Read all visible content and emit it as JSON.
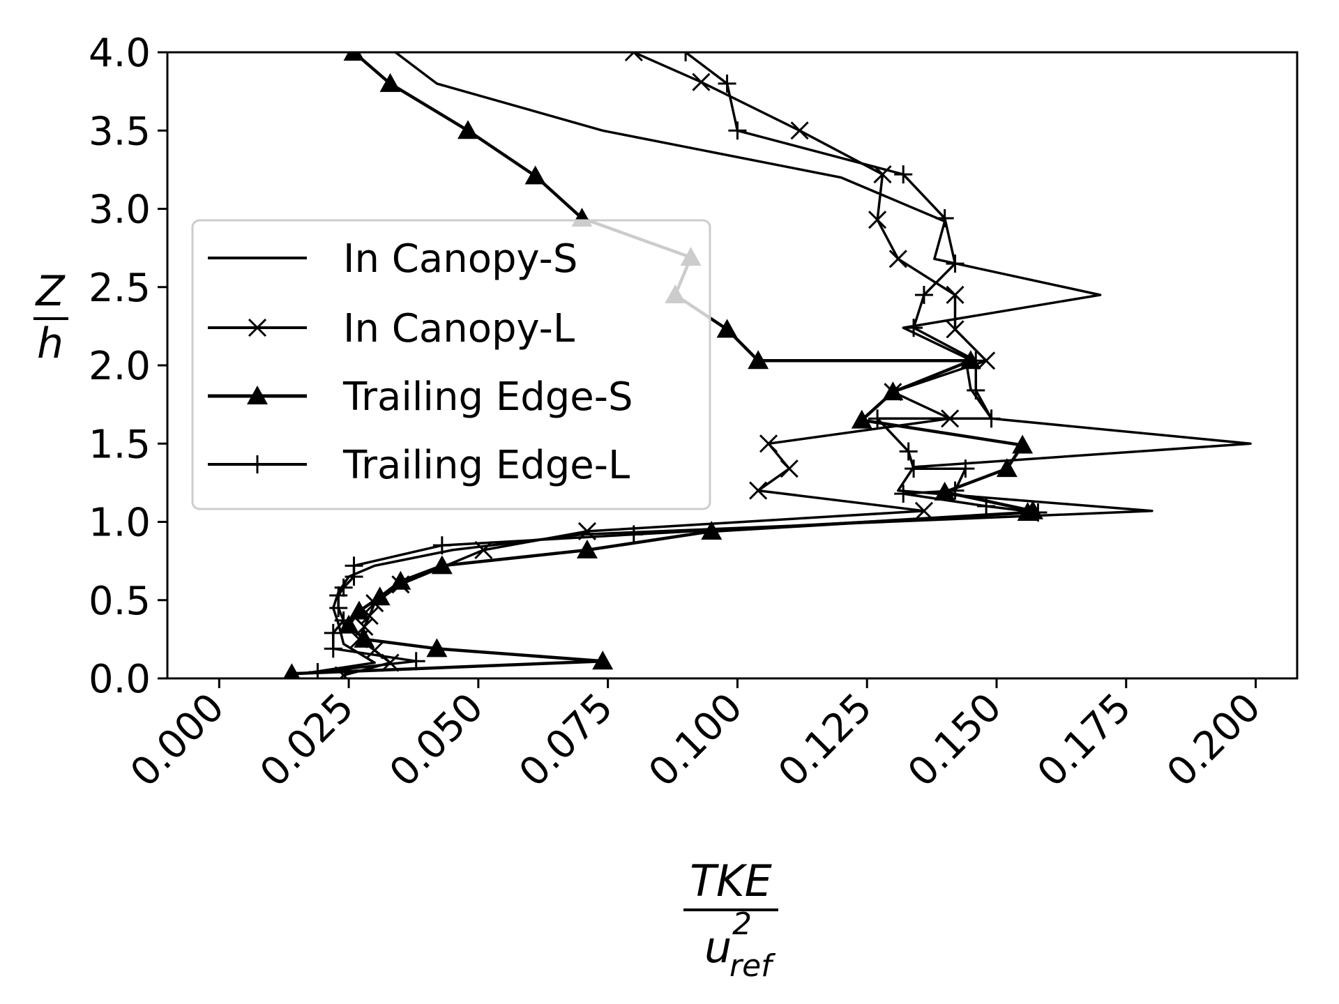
{
  "chart_data": {
    "type": "line",
    "title": "",
    "xlabel": {
      "numerator": "TKE",
      "denominator_base": "u",
      "denominator_sup": "2",
      "denominator_sub": "ref"
    },
    "ylabel": {
      "numerator": "Z",
      "denominator": "h"
    },
    "xlim": [
      -0.01,
      0.208
    ],
    "ylim": [
      0.0,
      4.0
    ],
    "x_ticks": [
      "0.000",
      "0.025",
      "0.050",
      "0.075",
      "0.100",
      "0.125",
      "0.150",
      "0.175",
      "0.200"
    ],
    "x_tick_values": [
      0.0,
      0.025,
      0.05,
      0.075,
      0.1,
      0.125,
      0.15,
      0.175,
      0.2
    ],
    "y_ticks": [
      "0.0",
      "0.5",
      "1.0",
      "1.5",
      "2.0",
      "2.5",
      "3.0",
      "3.5",
      "4.0"
    ],
    "y_tick_values": [
      0.0,
      0.5,
      1.0,
      1.5,
      2.0,
      2.5,
      3.0,
      3.5,
      4.0
    ],
    "grid": false,
    "legend_position": "center-left",
    "series": [
      {
        "name": "In Canopy-S",
        "marker": "none",
        "color": "#000000",
        "points": [
          [
            0.016,
            0.03
          ],
          [
            0.03,
            0.1
          ],
          [
            0.024,
            0.22
          ],
          [
            0.023,
            0.35
          ],
          [
            0.022,
            0.45
          ],
          [
            0.023,
            0.55
          ],
          [
            0.025,
            0.65
          ],
          [
            0.03,
            0.72
          ],
          [
            0.045,
            0.82
          ],
          [
            0.07,
            0.92
          ],
          [
            0.18,
            1.07
          ],
          [
            0.131,
            1.2
          ],
          [
            0.134,
            1.35
          ],
          [
            0.199,
            1.5
          ],
          [
            0.149,
            1.66
          ],
          [
            0.145,
            1.85
          ],
          [
            0.144,
            2.05
          ],
          [
            0.132,
            2.24
          ],
          [
            0.17,
            2.45
          ],
          [
            0.138,
            2.68
          ],
          [
            0.14,
            2.92
          ],
          [
            0.12,
            3.2
          ],
          [
            0.074,
            3.5
          ],
          [
            0.042,
            3.8
          ],
          [
            0.034,
            4.0
          ]
        ]
      },
      {
        "name": "In Canopy-L",
        "marker": "x",
        "color": "#000000",
        "points": [
          [
            0.024,
            0.02
          ],
          [
            0.033,
            0.1
          ],
          [
            0.03,
            0.18
          ],
          [
            0.027,
            0.25
          ],
          [
            0.028,
            0.33
          ],
          [
            0.029,
            0.4
          ],
          [
            0.03,
            0.48
          ],
          [
            0.035,
            0.6
          ],
          [
            0.051,
            0.82
          ],
          [
            0.071,
            0.94
          ],
          [
            0.136,
            1.07
          ],
          [
            0.104,
            1.2
          ],
          [
            0.11,
            1.34
          ],
          [
            0.106,
            1.5
          ],
          [
            0.141,
            1.66
          ],
          [
            0.13,
            1.83
          ],
          [
            0.148,
            2.03
          ],
          [
            0.142,
            2.23
          ],
          [
            0.142,
            2.45
          ],
          [
            0.131,
            2.68
          ],
          [
            0.127,
            2.93
          ],
          [
            0.128,
            3.22
          ],
          [
            0.112,
            3.5
          ],
          [
            0.093,
            3.81
          ],
          [
            0.08,
            4.0
          ]
        ]
      },
      {
        "name": "Trailing Edge-S",
        "marker": "triangle",
        "color": "#000000",
        "points": [
          [
            0.014,
            0.03
          ],
          [
            0.074,
            0.11
          ],
          [
            0.042,
            0.19
          ],
          [
            0.028,
            0.25
          ],
          [
            0.025,
            0.34
          ],
          [
            0.027,
            0.43
          ],
          [
            0.031,
            0.52
          ],
          [
            0.035,
            0.62
          ],
          [
            0.043,
            0.72
          ],
          [
            0.071,
            0.82
          ],
          [
            0.095,
            0.94
          ],
          [
            0.156,
            1.06
          ],
          [
            0.157,
            1.07
          ],
          [
            0.14,
            1.19
          ],
          [
            0.152,
            1.34
          ],
          [
            0.155,
            1.49
          ],
          [
            0.124,
            1.65
          ],
          [
            0.13,
            1.83
          ],
          [
            0.145,
            2.03
          ],
          [
            0.104,
            2.03
          ],
          [
            0.098,
            2.23
          ],
          [
            0.088,
            2.45
          ],
          [
            0.091,
            2.69
          ],
          [
            0.07,
            2.94
          ],
          [
            0.061,
            3.21
          ],
          [
            0.048,
            3.5
          ],
          [
            0.033,
            3.8
          ],
          [
            0.026,
            4.0
          ]
        ]
      },
      {
        "name": "Trailing Edge-L",
        "marker": "plus",
        "color": "#000000",
        "points": [
          [
            0.019,
            0.04
          ],
          [
            0.038,
            0.11
          ],
          [
            0.022,
            0.19
          ],
          [
            0.022,
            0.29
          ],
          [
            0.024,
            0.37
          ],
          [
            0.023,
            0.45
          ],
          [
            0.023,
            0.53
          ],
          [
            0.024,
            0.58
          ],
          [
            0.026,
            0.65
          ],
          [
            0.026,
            0.72
          ],
          [
            0.043,
            0.85
          ],
          [
            0.08,
            0.92
          ],
          [
            0.158,
            1.06
          ],
          [
            0.148,
            1.1
          ],
          [
            0.132,
            1.18
          ],
          [
            0.142,
            1.2
          ],
          [
            0.144,
            1.34
          ],
          [
            0.134,
            1.34
          ],
          [
            0.133,
            1.45
          ],
          [
            0.127,
            1.66
          ],
          [
            0.149,
            1.66
          ],
          [
            0.146,
            1.84
          ],
          [
            0.146,
            2.03
          ],
          [
            0.134,
            2.24
          ],
          [
            0.136,
            2.45
          ],
          [
            0.142,
            2.65
          ],
          [
            0.14,
            2.94
          ],
          [
            0.132,
            3.22
          ],
          [
            0.1,
            3.5
          ],
          [
            0.098,
            3.8
          ],
          [
            0.09,
            4.0
          ]
        ]
      }
    ]
  }
}
